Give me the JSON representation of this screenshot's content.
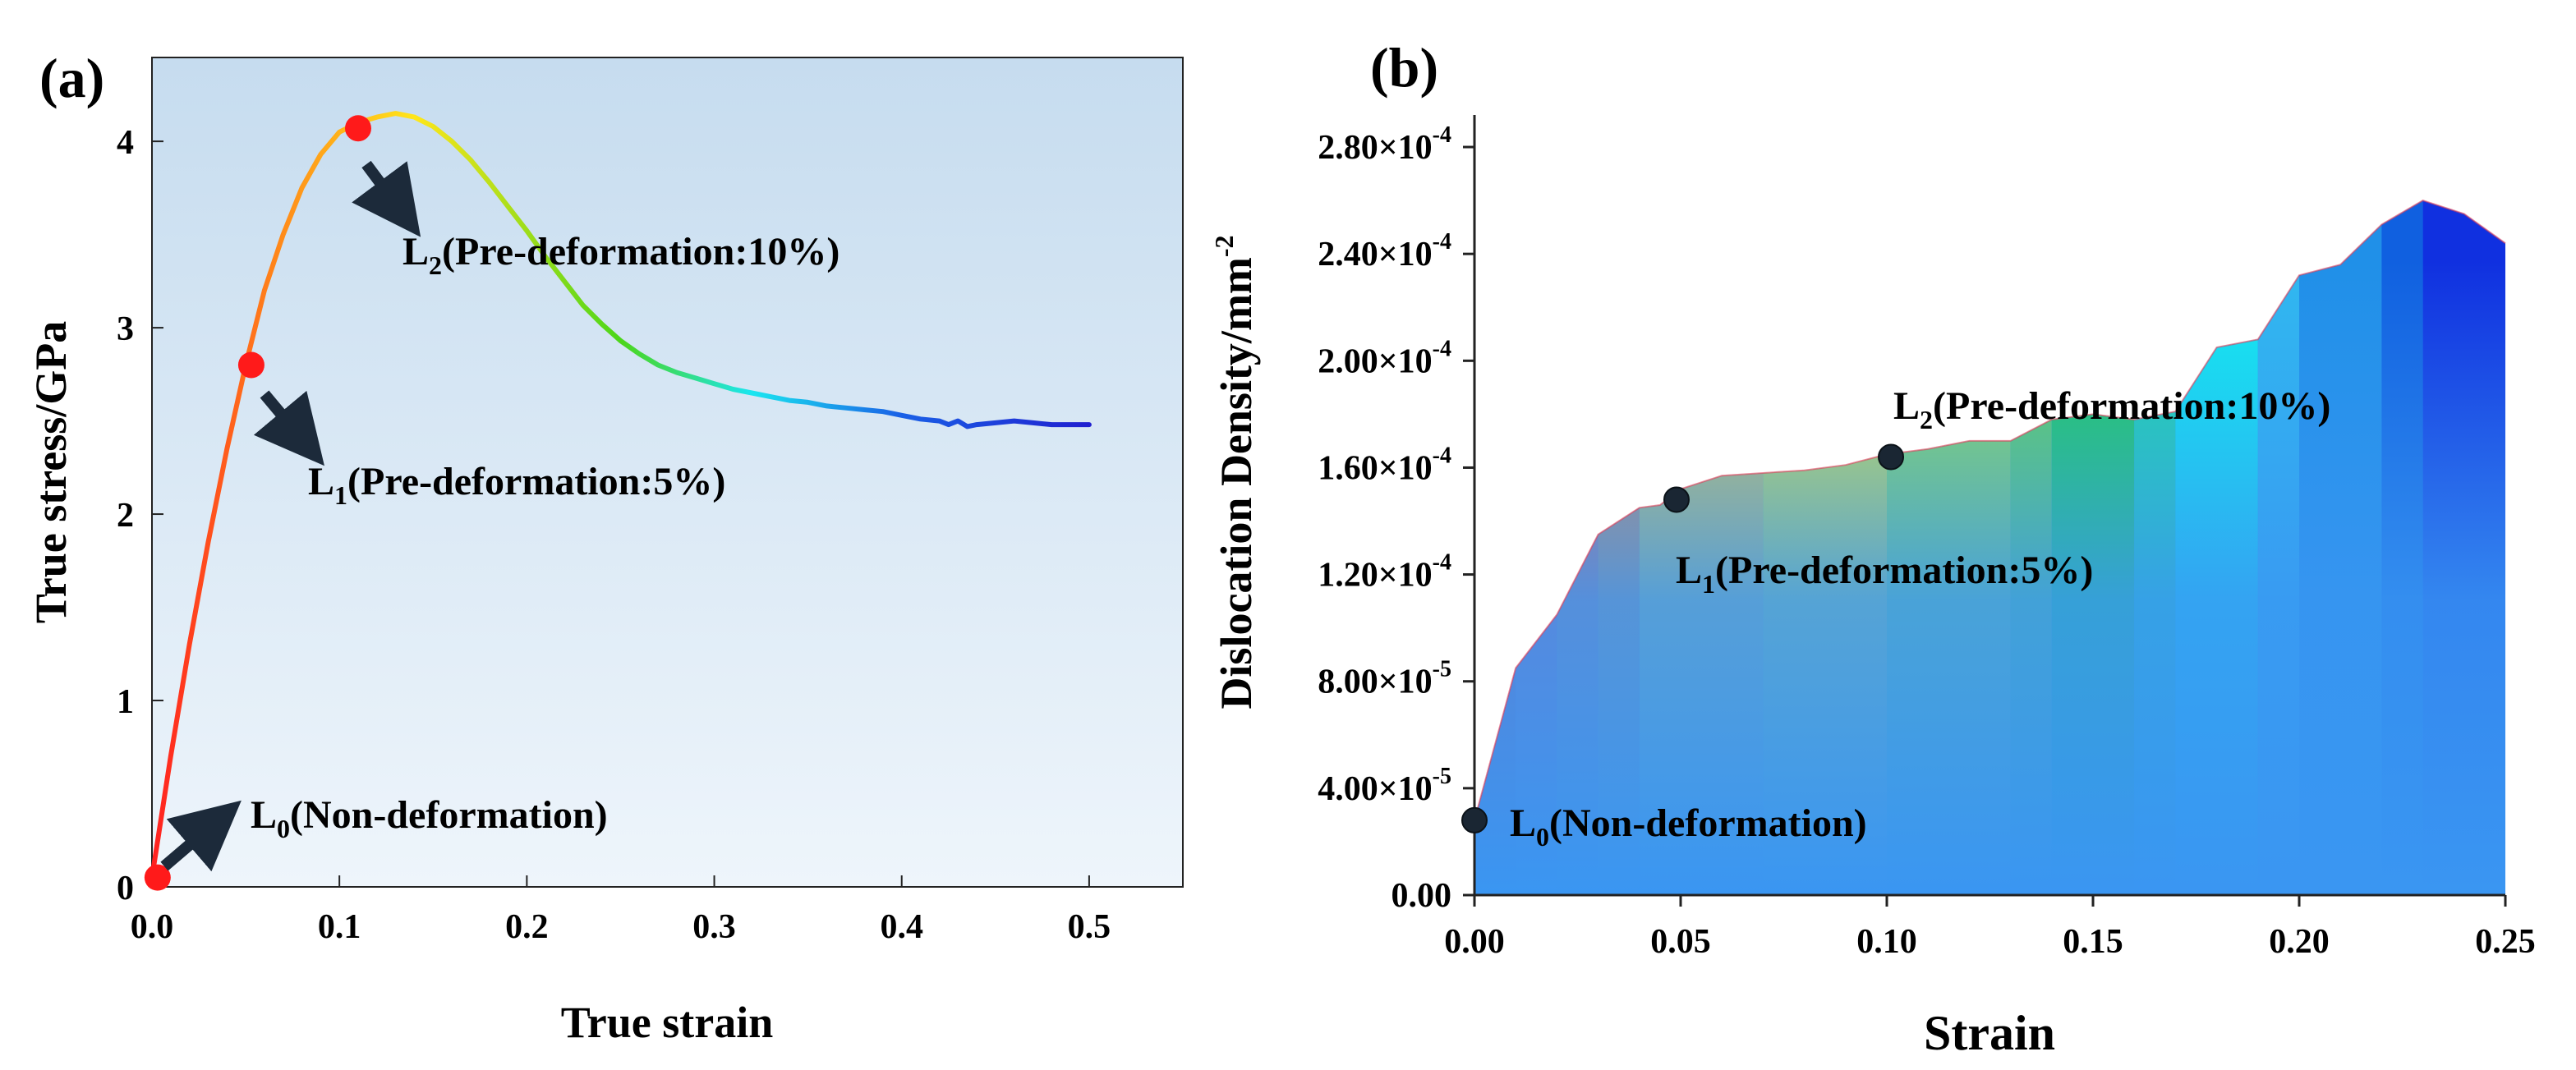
{
  "figure": {
    "panel_a_label": "(a)",
    "panel_b_label": "(b)"
  },
  "chart_data": [
    {
      "id": "a",
      "type": "line",
      "title": "",
      "xlabel": "True strain",
      "ylabel": "True stress/GPa",
      "xlim": [
        0,
        0.55
      ],
      "ylim": [
        0,
        4.45
      ],
      "xticks": [
        0.0,
        0.1,
        0.2,
        0.3,
        0.4,
        0.5
      ],
      "xtick_labels": [
        "0.0",
        "0.1",
        "0.2",
        "0.3",
        "0.4",
        "0.5"
      ],
      "yticks": [
        0,
        1,
        2,
        3,
        4
      ],
      "ytick_labels": [
        "0",
        "1",
        "2",
        "3",
        "4"
      ],
      "grid": false,
      "series": [
        {
          "name": "True stress-strain curve",
          "x": [
            0.0,
            0.01,
            0.02,
            0.03,
            0.04,
            0.05,
            0.06,
            0.07,
            0.08,
            0.09,
            0.1,
            0.11,
            0.12,
            0.13,
            0.14,
            0.15,
            0.16,
            0.17,
            0.18,
            0.19,
            0.2,
            0.21,
            0.22,
            0.23,
            0.24,
            0.25,
            0.26,
            0.27,
            0.28,
            0.29,
            0.3,
            0.31,
            0.32,
            0.33,
            0.34,
            0.35,
            0.36,
            0.37,
            0.38,
            0.39,
            0.4,
            0.41,
            0.42,
            0.425,
            0.43,
            0.435,
            0.44,
            0.45,
            0.46,
            0.47,
            0.48,
            0.49,
            0.5
          ],
          "y": [
            0.05,
            0.7,
            1.3,
            1.85,
            2.35,
            2.8,
            3.2,
            3.5,
            3.75,
            3.93,
            4.05,
            4.1,
            4.13,
            4.15,
            4.13,
            4.08,
            4.0,
            3.9,
            3.78,
            3.65,
            3.52,
            3.38,
            3.25,
            3.12,
            3.02,
            2.93,
            2.86,
            2.8,
            2.76,
            2.73,
            2.7,
            2.67,
            2.65,
            2.63,
            2.61,
            2.6,
            2.58,
            2.57,
            2.56,
            2.55,
            2.53,
            2.51,
            2.5,
            2.48,
            2.5,
            2.47,
            2.48,
            2.49,
            2.5,
            2.49,
            2.48,
            2.48,
            2.48
          ]
        }
      ],
      "markers": [
        {
          "x": 0.003,
          "y": 0.05,
          "color": "#ff1a1a"
        },
        {
          "x": 0.053,
          "y": 2.8,
          "color": "#ff1a1a"
        },
        {
          "x": 0.11,
          "y": 4.07,
          "color": "#ff1a1a"
        }
      ],
      "annotations": [
        {
          "main": "L",
          "sub": "0",
          "rest": "(Non-deformation)"
        },
        {
          "main": "L",
          "sub": "1",
          "rest": "(Pre-deformation:5%)"
        },
        {
          "main": "L",
          "sub": "2",
          "rest": "(Pre-deformation:10%)"
        }
      ],
      "colors": {
        "background_top": "#c6dcef",
        "background_bottom": "#eef5fb",
        "gradient": [
          "#ff2020",
          "#ff8c1a",
          "#ffe61a",
          "#4cd61a",
          "#1ae6f0",
          "#1a60e6",
          "#2020d0"
        ],
        "marker": "#ff1a1a",
        "arrow": "#1c2a3a"
      }
    },
    {
      "id": "b",
      "type": "area",
      "title": "",
      "xlabel": "Strain",
      "ylabel_main": "Dislocation Density/mm",
      "ylabel_sup": "-2",
      "xlim": [
        0,
        0.25
      ],
      "ylim": [
        0,
        0.000292
      ],
      "xticks": [
        0.0,
        0.05,
        0.1,
        0.15,
        0.2,
        0.25
      ],
      "xtick_labels": [
        "0.00",
        "0.05",
        "0.10",
        "0.15",
        "0.20",
        "0.25"
      ],
      "yticks": [
        0,
        4e-05,
        8e-05,
        0.00012,
        0.00016,
        0.0002,
        0.00024,
        0.00028
      ],
      "ytick_labels": [
        {
          "mant": "0.00",
          "exp": ""
        },
        {
          "mant": "4.00×10",
          "exp": "-5"
        },
        {
          "mant": "8.00×10",
          "exp": "-5"
        },
        {
          "mant": "1.20×10",
          "exp": "-4"
        },
        {
          "mant": "1.60×10",
          "exp": "-4"
        },
        {
          "mant": "2.00×10",
          "exp": "-4"
        },
        {
          "mant": "2.40×10",
          "exp": "-4"
        },
        {
          "mant": "2.80×10",
          "exp": "-4"
        }
      ],
      "grid": false,
      "x": [
        0.0,
        0.01,
        0.02,
        0.03,
        0.04,
        0.045,
        0.05,
        0.06,
        0.07,
        0.08,
        0.09,
        0.1,
        0.11,
        0.12,
        0.13,
        0.14,
        0.15,
        0.16,
        0.17,
        0.18,
        0.19,
        0.2,
        0.21,
        0.22,
        0.23,
        0.24,
        0.25
      ],
      "y": [
        2.8e-05,
        8.5e-05,
        0.000105,
        0.000135,
        0.000145,
        0.000146,
        0.000152,
        0.000157,
        0.000158,
        0.000159,
        0.000161,
        0.000165,
        0.000167,
        0.00017,
        0.00017,
        0.000178,
        0.00018,
        0.000178,
        0.000181,
        0.000205,
        0.000208,
        0.000232,
        0.000236,
        0.000251,
        0.00026,
        0.000255,
        0.000244
      ],
      "band_colors": [
        "#f0284c",
        "#f5456a",
        "#f06a5a",
        "#f58c40",
        "#f5d040",
        "#f0f030",
        "#a0ea40",
        "#70e040",
        "#20d840",
        "#20e0a0",
        "#10f0f0",
        "#30b8f0",
        "#2090e8",
        "#1060e0",
        "#1030e0"
      ],
      "band_edges": [
        0.0,
        0.01,
        0.02,
        0.03,
        0.04,
        0.07,
        0.1,
        0.13,
        0.14,
        0.16,
        0.17,
        0.19,
        0.2,
        0.22,
        0.23,
        0.25
      ],
      "base_color": "#2f8ff0",
      "markers": [
        {
          "x": 0.0,
          "y": 2.8e-05,
          "color": "#1a2633"
        },
        {
          "x": 0.049,
          "y": 0.000148,
          "color": "#1a2633"
        },
        {
          "x": 0.101,
          "y": 0.000164,
          "color": "#1a2633"
        }
      ],
      "annotations": [
        {
          "main": "L",
          "sub": "0",
          "rest": "(Non-deformation)"
        },
        {
          "main": "L",
          "sub": "1",
          "rest": "(Pre-deformation:5%)"
        },
        {
          "main": "L",
          "sub": "2",
          "rest": "(Pre-deformation:10%)"
        }
      ]
    }
  ]
}
